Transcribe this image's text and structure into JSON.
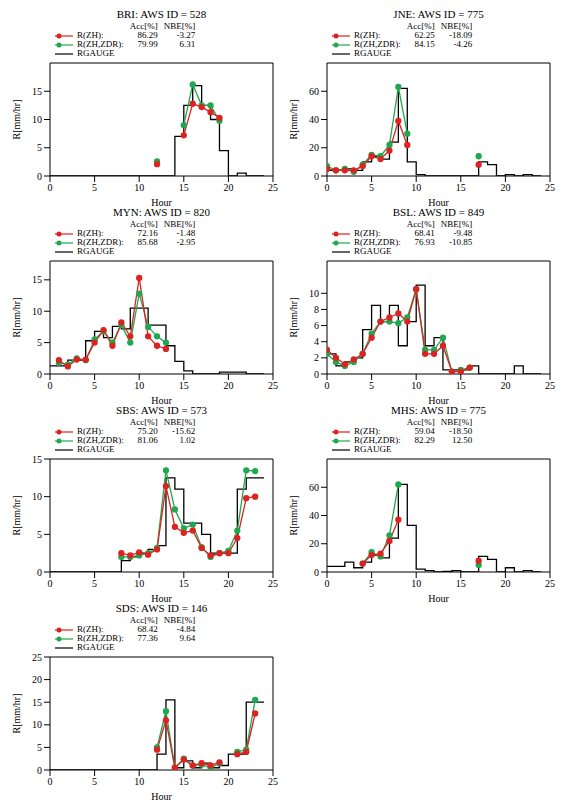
{
  "chart_data": [
    {
      "type": "line",
      "title": "BRI: AWS ID = 528",
      "x_label": "Hour",
      "y_label": "R[mm/hr]",
      "xlim": [
        0,
        25
      ],
      "xticks": [
        0,
        5,
        10,
        15,
        20,
        25
      ],
      "ylim": [
        0,
        20
      ],
      "yticks": [
        0,
        5,
        10,
        15
      ],
      "stat_headers": [
        "Acc[%]",
        "NBE[%]"
      ],
      "x": [
        0,
        1,
        2,
        3,
        4,
        5,
        6,
        7,
        8,
        9,
        10,
        11,
        12,
        13,
        14,
        15,
        16,
        17,
        18,
        19,
        20,
        21,
        22,
        23
      ],
      "series": [
        {
          "name": "R(ZH):",
          "color": "#dd2222",
          "marker": "circle",
          "stats": [
            86.29,
            -3.27
          ],
          "values": [
            null,
            null,
            null,
            null,
            null,
            null,
            null,
            null,
            null,
            null,
            null,
            null,
            2.1,
            null,
            null,
            7.2,
            12.8,
            12.2,
            11.3,
            10.3,
            null,
            null,
            null,
            null
          ]
        },
        {
          "name": "R(ZH,ZDR):",
          "color": "#1fa84f",
          "marker": "circle",
          "stats": [
            79.99,
            6.31
          ],
          "values": [
            null,
            null,
            null,
            null,
            null,
            null,
            null,
            null,
            null,
            null,
            null,
            null,
            2.6,
            null,
            null,
            9.0,
            16.2,
            12.5,
            12.5,
            9.8,
            null,
            null,
            null,
            null
          ]
        },
        {
          "name": "RGAUGE",
          "color": "#000000",
          "line_style": "step",
          "values": [
            0,
            0,
            0,
            0,
            0,
            0,
            0,
            0,
            0,
            0,
            0,
            0,
            0,
            0,
            7,
            12.5,
            16,
            12.5,
            10,
            4.5,
            0,
            0.5,
            0,
            0
          ]
        }
      ]
    },
    {
      "type": "line",
      "title": "JNE: AWS ID = 775",
      "x_label": "Hour",
      "y_label": "R[mm/hr]",
      "xlim": [
        0,
        25
      ],
      "xticks": [
        0,
        5,
        10,
        15,
        20,
        25
      ],
      "ylim": [
        0,
        80
      ],
      "yticks": [
        0,
        20,
        40,
        60
      ],
      "stat_headers": [
        "Acc[%]",
        "NBE[%]"
      ],
      "x": [
        0,
        1,
        2,
        3,
        4,
        5,
        6,
        7,
        8,
        9,
        10,
        11,
        12,
        13,
        14,
        15,
        16,
        17,
        18,
        19,
        20,
        21,
        22,
        23
      ],
      "series": [
        {
          "name": "R(ZH):",
          "color": "#dd2222",
          "marker": "circle",
          "stats": [
            62.25,
            -18.09
          ],
          "values": [
            5,
            4,
            4,
            4,
            7,
            14,
            12,
            18,
            39,
            22,
            null,
            null,
            null,
            null,
            null,
            null,
            null,
            8,
            null,
            null,
            null,
            null,
            null,
            null
          ]
        },
        {
          "name": "R(ZH,ZDR):",
          "color": "#1fa84f",
          "marker": "circle",
          "stats": [
            84.15,
            -4.26
          ],
          "values": [
            7,
            4,
            5,
            3,
            8,
            15,
            14,
            22,
            63,
            30,
            null,
            null,
            null,
            null,
            null,
            null,
            null,
            14,
            null,
            null,
            null,
            null,
            null,
            null
          ]
        },
        {
          "name": "RGAUGE",
          "color": "#000000",
          "line_style": "step",
          "values": [
            4,
            4,
            5,
            4,
            10,
            14,
            12,
            24,
            62,
            10,
            1,
            0,
            0,
            0,
            0,
            0,
            0,
            10,
            8,
            0,
            1,
            0,
            1,
            0
          ]
        }
      ]
    },
    {
      "type": "line",
      "title": "MYN: AWS ID = 820",
      "x_label": "Hour",
      "y_label": "R[mm/hr]",
      "xlim": [
        0,
        25
      ],
      "xticks": [
        0,
        5,
        10,
        15,
        20,
        25
      ],
      "ylim": [
        0,
        18
      ],
      "yticks": [
        0,
        5,
        10,
        15
      ],
      "stat_headers": [
        "Acc[%]",
        "NBE[%]"
      ],
      "x": [
        0,
        1,
        2,
        3,
        4,
        5,
        6,
        7,
        8,
        9,
        10,
        11,
        12,
        13,
        14,
        15,
        16,
        17,
        18,
        19,
        20,
        21,
        22,
        23
      ],
      "series": [
        {
          "name": "R(ZH):",
          "color": "#dd2222",
          "marker": "circle",
          "stats": [
            72.16,
            -1.48
          ],
          "values": [
            null,
            2.2,
            1.2,
            2.3,
            2.3,
            5,
            7,
            4.5,
            8.2,
            6,
            15.3,
            6,
            4.5,
            4,
            null,
            null,
            null,
            null,
            null,
            null,
            null,
            null,
            null,
            null
          ]
        },
        {
          "name": "R(ZH,ZDR):",
          "color": "#1fa84f",
          "marker": "circle",
          "stats": [
            85.68,
            -2.95
          ],
          "values": [
            null,
            1.8,
            1.5,
            2.5,
            2.2,
            5.5,
            6.8,
            5,
            7.8,
            5,
            12.8,
            7.5,
            6,
            5,
            null,
            null,
            null,
            null,
            null,
            null,
            null,
            null,
            null,
            null
          ]
        },
        {
          "name": "RGAUGE",
          "color": "#000000",
          "line_style": "step",
          "values": [
            1.3,
            1.3,
            2.2,
            2.2,
            5.3,
            6.8,
            5.8,
            7.6,
            7.2,
            10.5,
            10.5,
            7.8,
            7.8,
            4.5,
            2,
            0.5,
            0,
            0,
            0,
            0.3,
            0.3,
            0.3,
            0,
            0
          ]
        }
      ]
    },
    {
      "type": "line",
      "title": "BSL: AWS ID = 849",
      "x_label": "Hour",
      "y_label": "R[mm/hr]",
      "xlim": [
        0,
        25
      ],
      "xticks": [
        0,
        5,
        10,
        15,
        20,
        25
      ],
      "ylim": [
        0,
        14
      ],
      "yticks": [
        0,
        2,
        4,
        6,
        8,
        10
      ],
      "stat_headers": [
        "Acc[%]",
        "NBE[%]"
      ],
      "x": [
        0,
        1,
        2,
        3,
        4,
        5,
        6,
        7,
        8,
        9,
        10,
        11,
        12,
        13,
        14,
        15,
        16,
        17,
        18,
        19,
        20,
        21,
        22,
        23
      ],
      "series": [
        {
          "name": "R(ZH):",
          "color": "#dd2222",
          "marker": "circle",
          "stats": [
            68.41,
            -9.48
          ],
          "values": [
            3,
            2,
            1.2,
            1.8,
            2.5,
            4.5,
            6.5,
            7,
            7.5,
            6.5,
            10.5,
            2.5,
            2.5,
            3.5,
            0.3,
            0.3,
            0.8,
            null,
            null,
            null,
            null,
            null,
            null,
            null
          ]
        },
        {
          "name": "R(ZH,ZDR):",
          "color": "#1fa84f",
          "marker": "circle",
          "stats": [
            76.93,
            -10.85
          ],
          "values": [
            2.5,
            1.5,
            1,
            1.5,
            2.5,
            5,
            6.5,
            6.5,
            6.3,
            7,
            10.5,
            3,
            3,
            4.5,
            0.3,
            0.5,
            0.8,
            null,
            null,
            null,
            null,
            null,
            null,
            null
          ]
        },
        {
          "name": "RGAUGE",
          "color": "#000000",
          "line_style": "step",
          "values": [
            2.5,
            1,
            1.5,
            2,
            5.5,
            8.5,
            6.5,
            8.5,
            3.5,
            6.5,
            11,
            3.5,
            4.5,
            0.5,
            0.5,
            0.5,
            1,
            0,
            0,
            0,
            0,
            1,
            0,
            0
          ]
        }
      ]
    },
    {
      "type": "line",
      "title": "SBS: AWS ID = 573",
      "x_label": "Hour",
      "y_label": "R[mm/hr]",
      "xlim": [
        0,
        25
      ],
      "xticks": [
        0,
        5,
        10,
        15,
        20,
        25
      ],
      "ylim": [
        0,
        15
      ],
      "yticks": [
        0,
        5,
        10,
        15
      ],
      "stat_headers": [
        "Acc[%]",
        "NBE[%]"
      ],
      "x": [
        0,
        1,
        2,
        3,
        4,
        5,
        6,
        7,
        8,
        9,
        10,
        11,
        12,
        13,
        14,
        15,
        16,
        17,
        18,
        19,
        20,
        21,
        22,
        23
      ],
      "series": [
        {
          "name": "R(ZH):",
          "color": "#dd2222",
          "marker": "circle",
          "stats": [
            75.2,
            -15.62
          ],
          "values": [
            null,
            null,
            null,
            null,
            null,
            null,
            null,
            null,
            2.5,
            2.2,
            2.6,
            2.3,
            3.0,
            11.4,
            6,
            5.2,
            5.5,
            3.2,
            2.2,
            2.5,
            2.5,
            4.5,
            9.8,
            10
          ]
        },
        {
          "name": "R(ZH,ZDR):",
          "color": "#1fa84f",
          "marker": "circle",
          "stats": [
            81.06,
            1.02
          ],
          "values": [
            null,
            null,
            null,
            null,
            null,
            null,
            null,
            null,
            2,
            2,
            2.2,
            2.5,
            3.2,
            13.5,
            8.3,
            5.8,
            6.3,
            3.3,
            2,
            2.5,
            2.8,
            5.5,
            13.5,
            13.4
          ]
        },
        {
          "name": "RGAUGE",
          "color": "#000000",
          "line_style": "step",
          "values": [
            0,
            0,
            0,
            0,
            0,
            0,
            0,
            0,
            1.5,
            2,
            2.5,
            3,
            3.5,
            12.5,
            11,
            6.5,
            6.5,
            5,
            2.5,
            2.5,
            2.5,
            11,
            12.5,
            12.5
          ]
        }
      ]
    },
    {
      "type": "line",
      "title": "MHS: AWS ID = 775",
      "x_label": "Hour",
      "y_label": "R[mm/hr]",
      "xlim": [
        0,
        25
      ],
      "xticks": [
        0,
        5,
        10,
        15,
        20,
        25
      ],
      "ylim": [
        0,
        80
      ],
      "yticks": [
        0,
        20,
        40,
        60
      ],
      "stat_headers": [
        "Acc[%]",
        "NBE[%]"
      ],
      "x": [
        0,
        1,
        2,
        3,
        4,
        5,
        6,
        7,
        8,
        9,
        10,
        11,
        12,
        13,
        14,
        15,
        16,
        17,
        18,
        19,
        20,
        21,
        22,
        23
      ],
      "series": [
        {
          "name": "R(ZH):",
          "color": "#dd2222",
          "marker": "circle",
          "stats": [
            59.04,
            -18.5
          ],
          "values": [
            null,
            null,
            null,
            null,
            6,
            12,
            13,
            22,
            37,
            null,
            null,
            null,
            null,
            null,
            null,
            null,
            null,
            8,
            null,
            null,
            null,
            null,
            null,
            null
          ]
        },
        {
          "name": "R(ZH,ZDR):",
          "color": "#1fa84f",
          "marker": "circle",
          "stats": [
            82.29,
            12.5
          ],
          "values": [
            null,
            null,
            null,
            null,
            6,
            14,
            11,
            26,
            62,
            null,
            null,
            null,
            null,
            null,
            null,
            null,
            null,
            5,
            null,
            null,
            null,
            null,
            null,
            null
          ]
        },
        {
          "name": "RGAUGE",
          "color": "#000000",
          "line_style": "step",
          "values": [
            4,
            4,
            7,
            3,
            7,
            12,
            10,
            24,
            62,
            33,
            2,
            1,
            0,
            0.5,
            1,
            0,
            0,
            11,
            9,
            0,
            3,
            0,
            1,
            0
          ]
        }
      ]
    },
    {
      "type": "line",
      "title": "SDS: AWS ID = 146",
      "x_label": "Hour",
      "y_label": "R[mm/hr]",
      "xlim": [
        0,
        25
      ],
      "xticks": [
        0,
        5,
        10,
        15,
        20,
        25
      ],
      "ylim": [
        0,
        25
      ],
      "yticks": [
        0,
        5,
        10,
        15,
        20,
        25
      ],
      "stat_headers": [
        "Acc[%]",
        "NBE[%]"
      ],
      "x": [
        0,
        1,
        2,
        3,
        4,
        5,
        6,
        7,
        8,
        9,
        10,
        11,
        12,
        13,
        14,
        15,
        16,
        17,
        18,
        19,
        20,
        21,
        22,
        23
      ],
      "series": [
        {
          "name": "R(ZH):",
          "color": "#dd2222",
          "marker": "circle",
          "stats": [
            68.42,
            -4.84
          ],
          "values": [
            null,
            null,
            null,
            null,
            null,
            null,
            null,
            null,
            null,
            null,
            null,
            null,
            4.5,
            11,
            0.5,
            2.3,
            1,
            1.5,
            1,
            1.7,
            null,
            3.5,
            4,
            12.5
          ]
        },
        {
          "name": "R(ZH,ZDR):",
          "color": "#1fa84f",
          "marker": "circle",
          "stats": [
            77.36,
            9.64
          ],
          "values": [
            null,
            null,
            null,
            null,
            null,
            null,
            null,
            null,
            null,
            null,
            null,
            null,
            5,
            13,
            0.5,
            2.5,
            1,
            1.2,
            0.5,
            1.5,
            null,
            4,
            4.5,
            15.5
          ]
        },
        {
          "name": "RGAUGE",
          "color": "#000000",
          "line_style": "step",
          "values": [
            0,
            0,
            0,
            0,
            0,
            0,
            0,
            0,
            0,
            0,
            0,
            0,
            3.5,
            15.5,
            0.5,
            2,
            0.5,
            1.5,
            0.5,
            1,
            3.5,
            3.5,
            15,
            15
          ]
        }
      ]
    }
  ]
}
